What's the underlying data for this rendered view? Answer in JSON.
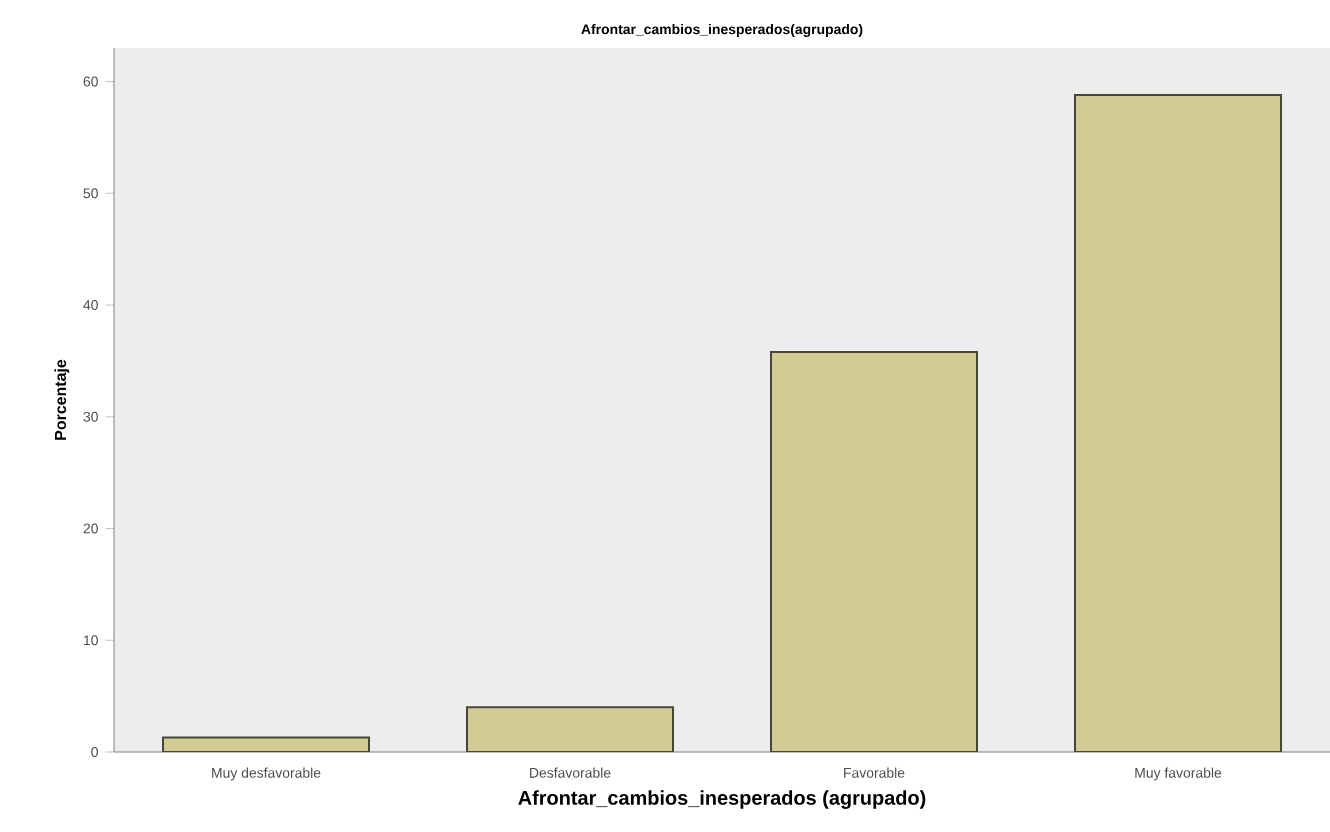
{
  "chart_data": {
    "type": "bar",
    "title": "Afrontar_cambios_inesperados(agrupado)",
    "xlabel": "Afrontar_cambios_inesperados (agrupado)",
    "ylabel": "Porcentaje",
    "categories": [
      "Muy desfavorable",
      "Desfavorable",
      "Favorable",
      "Muy favorable"
    ],
    "values": [
      1.3,
      4.0,
      35.8,
      58.8
    ],
    "color": "#d2cb94",
    "ylim": [
      0,
      63
    ],
    "yticks": [
      0,
      10,
      20,
      30,
      40,
      50,
      60
    ],
    "grid": false
  }
}
